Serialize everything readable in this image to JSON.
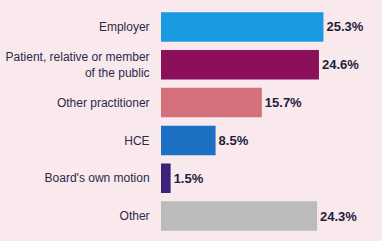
{
  "chart_data": {
    "type": "bar",
    "orientation": "horizontal",
    "categories": [
      "Employer",
      "Patient, relative or member of the public",
      "Other practitioner",
      "HCE",
      "Board's own motion",
      "Other"
    ],
    "values": [
      25.3,
      24.6,
      15.7,
      8.5,
      1.5,
      24.3
    ],
    "value_labels": [
      "25.3%",
      "24.6%",
      "15.7%",
      "8.5%",
      "1.5%",
      "24.3%"
    ],
    "colors": [
      "#1a9ae0",
      "#8c0f5b",
      "#d4707b",
      "#1d6fc4",
      "#3b2379",
      "#bbbbbb"
    ],
    "data_labels": true,
    "tick_labels": "y",
    "grid": false
  }
}
